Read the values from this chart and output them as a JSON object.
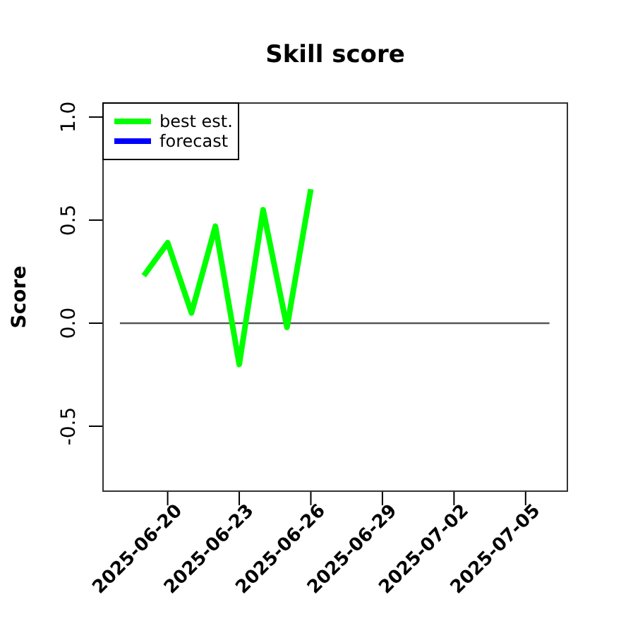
{
  "chart_data": {
    "type": "line",
    "title": "Skill score",
    "ylabel": "Score",
    "xlim": [
      "2025-06-17T07:00",
      "2025-07-06T18:00"
    ],
    "ylim": [
      -0.815,
      1.068
    ],
    "xticks": [
      {
        "value": "2025-06-20",
        "label": "2025-06-20"
      },
      {
        "value": "2025-06-23",
        "label": "2025-06-23"
      },
      {
        "value": "2025-06-26",
        "label": "2025-06-26"
      },
      {
        "value": "2025-06-29",
        "label": "2025-06-29"
      },
      {
        "value": "2025-07-02",
        "label": "2025-07-02"
      },
      {
        "value": "2025-07-05",
        "label": "2025-07-05"
      }
    ],
    "yticks": [
      {
        "value": -0.5,
        "label": "-0.5"
      },
      {
        "value": 0,
        "label": "0.0"
      },
      {
        "value": 0.5,
        "label": "0.5"
      },
      {
        "value": 1,
        "label": "1.0"
      }
    ],
    "legend": "top left",
    "grid": false,
    "series": [
      {
        "x": [
          "2025-06-18",
          "2025-07-06"
        ],
        "values": [
          0,
          0
        ],
        "color": "#555555"
      },
      {
        "name": "best est.",
        "color": "#00ff00",
        "x": [
          "2025-06-19",
          "2025-06-20",
          "2025-06-21",
          "2025-06-22",
          "2025-06-23",
          "2025-06-24",
          "2025-06-25",
          "2025-06-26"
        ],
        "values": [
          0.23,
          0.39,
          0.05,
          0.47,
          -0.2,
          0.55,
          -0.02,
          0.65
        ]
      },
      {
        "name": "forecast",
        "color": "#0000ff"
      }
    ]
  }
}
